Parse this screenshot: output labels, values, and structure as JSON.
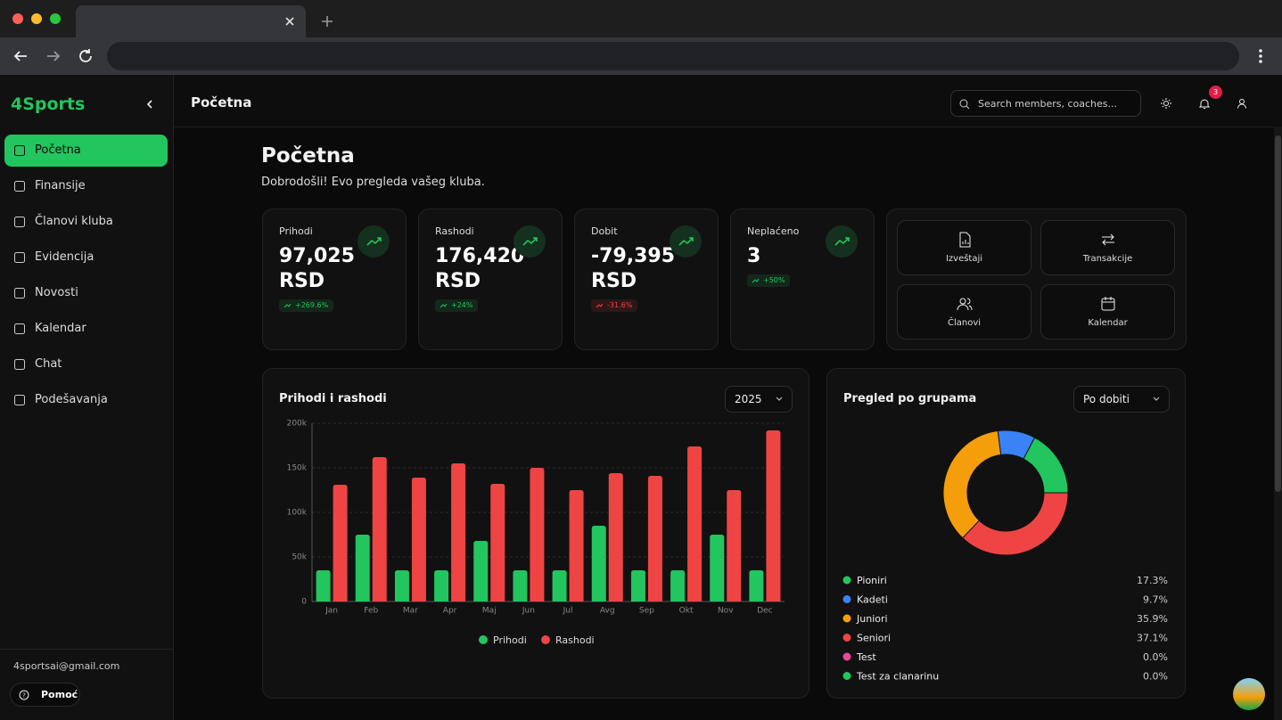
{
  "sidebar": {
    "brand": "4Sports",
    "nav": [
      "Početna",
      "Finansije",
      "Članovi kluba",
      "Evidencija",
      "Novosti",
      "Kalendar",
      "Chat",
      "Podešavanja"
    ],
    "active": 0,
    "email": "4sportsai@gmail.com",
    "help": "Pomoć"
  },
  "header": {
    "title": "Početna",
    "search_placeholder": "Search members, coaches...",
    "notifications": "3"
  },
  "page": {
    "title": "Početna",
    "subtitle": "Dobrodošli! Evo pregleda vašeg kluba."
  },
  "stats": [
    {
      "label": "Prihodi",
      "value": "97,025",
      "unit": "RSD",
      "change": "+269.6%",
      "color": "#22c55e"
    },
    {
      "label": "Rashodi",
      "value": "176,420",
      "unit": "RSD",
      "change": "+24%",
      "color": "#22c55e"
    },
    {
      "label": "Dobit",
      "value": "-79,395",
      "unit": "RSD",
      "change": "-31.6%",
      "color": "#ef4444"
    },
    {
      "label": "Neplaćeno",
      "value": "3",
      "change": "+50%",
      "color": "#22c55e"
    }
  ],
  "quick_actions": [
    "Izveštaji",
    "Transakcije",
    "Članovi",
    "Kalendar"
  ],
  "chart_data": [
    {
      "type": "bar",
      "title": "Prihodi i rashodi",
      "dropdown": "2025",
      "categories": [
        "Jan",
        "Feb",
        "Mar",
        "Apr",
        "Maj",
        "Jun",
        "Jul",
        "Avg",
        "Sep",
        "Okt",
        "Nov",
        "Dec"
      ],
      "series": [
        {
          "name": "Prihodi",
          "color": "#22c55e",
          "values": [
            35000,
            75000,
            35000,
            35000,
            68000,
            35000,
            35000,
            85000,
            35000,
            35000,
            75000,
            35000
          ]
        },
        {
          "name": "Rashodi",
          "color": "#ef4444",
          "values": [
            131000,
            162000,
            139000,
            155000,
            132000,
            150000,
            125000,
            144000,
            141000,
            174000,
            125000,
            192000
          ]
        }
      ],
      "ylim": [
        0,
        200000
      ],
      "yticks": [
        0,
        {
          "value": 50000,
          "label": "50k"
        },
        {
          "value": 100000,
          "label": "100k"
        },
        {
          "value": 150000,
          "label": "150k"
        },
        {
          "value": 200000,
          "label": "200k"
        }
      ],
      "grid": true,
      "legend": "bottom"
    },
    {
      "type": "pie",
      "title": "Pregled po grupama",
      "dropdown": "Po dobiti",
      "categories": [
        "Pioniri",
        "Kadeti",
        "Juniori",
        "Seniori",
        "Test",
        "Test za clanarinu"
      ],
      "values": [
        17.3,
        9.7,
        35.9,
        37.1,
        0.0,
        0.0
      ],
      "value_labels": [
        "17.3%",
        "9.7%",
        "35.9%",
        "37.1%",
        "0.0%",
        "0.0%"
      ],
      "colors": [
        "#22c55e",
        "#3b82f6",
        "#f59e0b",
        "#ef4444",
        "#ec4899",
        "#22c55e"
      ],
      "donut": true
    }
  ]
}
